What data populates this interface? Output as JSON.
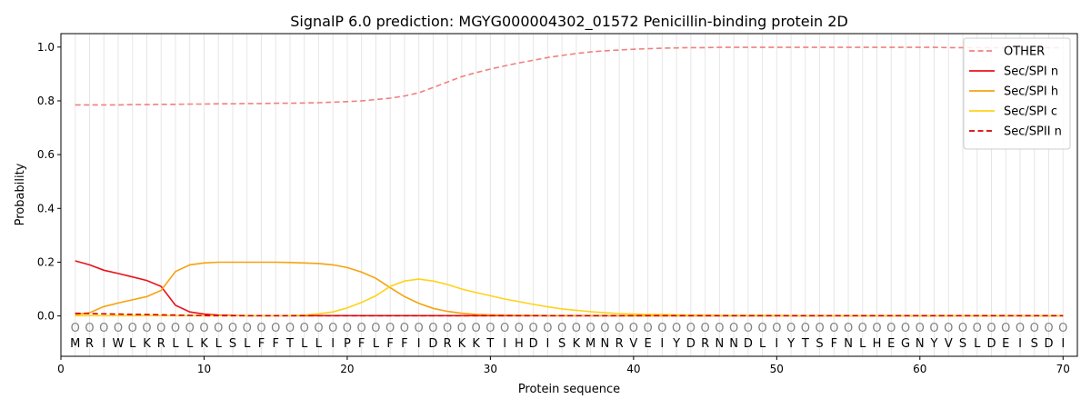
{
  "chart_data": {
    "type": "line",
    "title": "SignalP 6.0 prediction: MGYG000004302_01572 Penicillin-binding protein 2D",
    "xlabel": "Protein sequence",
    "ylabel": "Probability",
    "xlim": [
      0,
      71
    ],
    "ylim": [
      -0.15,
      1.05
    ],
    "x_ticks": [
      0,
      10,
      20,
      30,
      40,
      50,
      60,
      70
    ],
    "y_ticks": [
      0.0,
      0.2,
      0.4,
      0.6,
      0.8,
      1.0
    ],
    "x_tick_labels": [
      "0",
      "10",
      "20",
      "30",
      "40",
      "50",
      "60",
      "70"
    ],
    "y_tick_labels": [
      "0.0",
      "0.2",
      "0.4",
      "0.6",
      "0.8",
      "1.0"
    ],
    "vertical_grid": true,
    "legend_position": "top-right",
    "sequence": [
      "M",
      "R",
      "I",
      "W",
      "L",
      "K",
      "R",
      "L",
      "L",
      "K",
      "L",
      "S",
      "L",
      "F",
      "F",
      "T",
      "L",
      "L",
      "I",
      "P",
      "F",
      "L",
      "F",
      "F",
      "I",
      "D",
      "R",
      "K",
      "K",
      "T",
      "I",
      "H",
      "D",
      "I",
      "S",
      "K",
      "M",
      "N",
      "R",
      "V",
      "E",
      "I",
      "Y",
      "D",
      "R",
      "N",
      "N",
      "D",
      "L",
      "I",
      "Y",
      "T",
      "S",
      "F",
      "N",
      "L",
      "H",
      "E",
      "G",
      "N",
      "Y",
      "V",
      "S",
      "L",
      "D",
      "E",
      "I",
      "S",
      "D",
      "I"
    ],
    "annotation_label": "O",
    "series": [
      {
        "name": "OTHER",
        "color": "#f08080",
        "dash": "dashed",
        "values": [
          0.785,
          0.785,
          0.785,
          0.785,
          0.786,
          0.786,
          0.787,
          0.787,
          0.788,
          0.788,
          0.789,
          0.789,
          0.79,
          0.79,
          0.791,
          0.791,
          0.792,
          0.793,
          0.795,
          0.797,
          0.8,
          0.805,
          0.81,
          0.818,
          0.83,
          0.85,
          0.87,
          0.89,
          0.905,
          0.918,
          0.93,
          0.941,
          0.951,
          0.961,
          0.969,
          0.976,
          0.982,
          0.986,
          0.989,
          0.992,
          0.994,
          0.996,
          0.997,
          0.998,
          0.998,
          0.999,
          0.999,
          0.999,
          0.999,
          0.999,
          0.999,
          0.999,
          0.999,
          0.999,
          0.999,
          0.999,
          0.999,
          0.999,
          0.999,
          0.999,
          0.999,
          0.998,
          0.998,
          0.998,
          0.998,
          0.998,
          0.998,
          0.998,
          0.998,
          0.998
        ]
      },
      {
        "name": "Sec/SPI n",
        "color": "#e8121a",
        "dash": "solid",
        "values": [
          0.205,
          0.19,
          0.17,
          0.158,
          0.145,
          0.132,
          0.11,
          0.04,
          0.015,
          0.007,
          0.003,
          0.002,
          0.001,
          0.001,
          0.001,
          0.001,
          0.001,
          0.001,
          0.001,
          0.001,
          0.001,
          0.001,
          0.001,
          0.001,
          0.001,
          0.001,
          0.001,
          0.001,
          0.001,
          0.001,
          0.001,
          0.001,
          0.001,
          0.001,
          0.001,
          0.001,
          0.001,
          0.001,
          0.001,
          0.001,
          0.001,
          0.001,
          0.001,
          0.001,
          0.001,
          0.001,
          0.001,
          0.001,
          0.001,
          0.001,
          0.001,
          0.001,
          0.001,
          0.001,
          0.001,
          0.001,
          0.001,
          0.001,
          0.001,
          0.001,
          0.001,
          0.001,
          0.001,
          0.001,
          0.001,
          0.001,
          0.001,
          0.001,
          0.001,
          0.001
        ]
      },
      {
        "name": "Sec/SPI h",
        "color": "#f5a30d",
        "dash": "solid",
        "values": [
          0.005,
          0.012,
          0.035,
          0.048,
          0.06,
          0.072,
          0.095,
          0.165,
          0.19,
          0.197,
          0.2,
          0.2,
          0.2,
          0.2,
          0.2,
          0.199,
          0.197,
          0.195,
          0.19,
          0.18,
          0.163,
          0.14,
          0.105,
          0.072,
          0.047,
          0.028,
          0.017,
          0.01,
          0.006,
          0.004,
          0.003,
          0.002,
          0.002,
          0.001,
          0.001,
          0.001,
          0.001,
          0.001,
          0.001,
          0.001,
          0.001,
          0.001,
          0.001,
          0.001,
          0.001,
          0.001,
          0.001,
          0.001,
          0.001,
          0.001,
          0.001,
          0.001,
          0.001,
          0.001,
          0.001,
          0.001,
          0.001,
          0.001,
          0.001,
          0.001,
          0.001,
          0.001,
          0.001,
          0.001,
          0.001,
          0.001,
          0.001,
          0.001,
          0.001,
          0.001
        ]
      },
      {
        "name": "Sec/SPI c",
        "color": "#ffd21a",
        "dash": "solid",
        "values": [
          0.001,
          0.001,
          0.001,
          0.001,
          0.001,
          0.001,
          0.001,
          0.001,
          0.001,
          0.001,
          0.001,
          0.001,
          0.001,
          0.001,
          0.001,
          0.001,
          0.003,
          0.008,
          0.015,
          0.03,
          0.05,
          0.075,
          0.11,
          0.13,
          0.137,
          0.13,
          0.117,
          0.1,
          0.087,
          0.075,
          0.063,
          0.053,
          0.043,
          0.034,
          0.026,
          0.021,
          0.016,
          0.012,
          0.009,
          0.007,
          0.006,
          0.005,
          0.004,
          0.003,
          0.003,
          0.002,
          0.002,
          0.002,
          0.002,
          0.002,
          0.001,
          0.001,
          0.001,
          0.001,
          0.001,
          0.001,
          0.001,
          0.001,
          0.001,
          0.001,
          0.001,
          0.001,
          0.001,
          0.001,
          0.001,
          0.001,
          0.001,
          0.001,
          0.001,
          0.001
        ]
      },
      {
        "name": "Sec/SPII n",
        "color": "#d60000",
        "dash": "dashed",
        "values": [
          0.01,
          0.009,
          0.008,
          0.007,
          0.006,
          0.005,
          0.004,
          0.003,
          0.002,
          0.001,
          0.001,
          0.001,
          0.001,
          0.001,
          0.001,
          0.001,
          0.001,
          0.001,
          0.001,
          0.001,
          0.001,
          0.001,
          0.001,
          0.001,
          0.001,
          0.001,
          0.001,
          0.001,
          0.001,
          0.001,
          0.001,
          0.001,
          0.001,
          0.001,
          0.001,
          0.001,
          0.001,
          0.001,
          0.001,
          0.001,
          0.001,
          0.001,
          0.001,
          0.001,
          0.001,
          0.001,
          0.001,
          0.001,
          0.001,
          0.001,
          0.001,
          0.001,
          0.001,
          0.001,
          0.001,
          0.001,
          0.001,
          0.001,
          0.001,
          0.001,
          0.001,
          0.001,
          0.001,
          0.001,
          0.001,
          0.001,
          0.001,
          0.001,
          0.001,
          0.001
        ]
      }
    ]
  }
}
